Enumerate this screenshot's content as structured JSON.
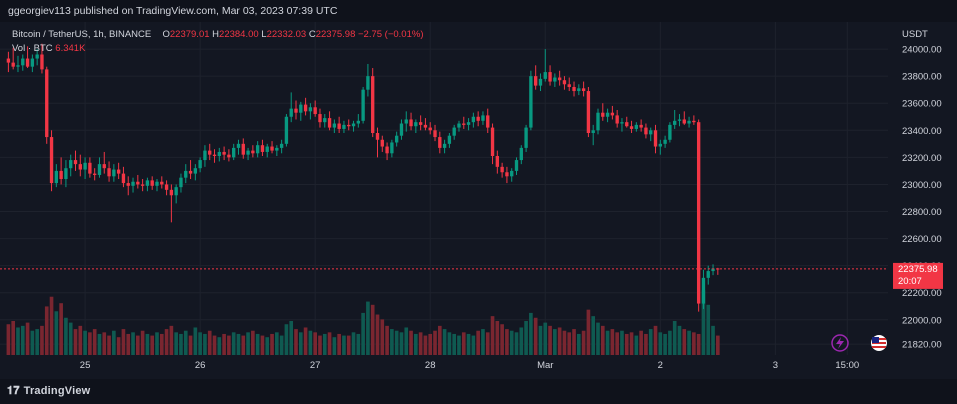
{
  "header": {
    "published": "ggeorgiev113 published on TradingView.com, Mar 03, 2023 07:39 UTC"
  },
  "legend": {
    "symbol": "Bitcoin / TetherUS, 1h, BINANCE",
    "o_label": "O",
    "o_value": "22379.01",
    "h_label": "H",
    "h_value": "22384.00",
    "l_label": "L",
    "l_value": "22332.03",
    "c_label": "C",
    "c_value": "22375.98",
    "change": "−2.75 (−0.01%)",
    "vol_label": "Vol · BTC",
    "vol_value": "6.341K"
  },
  "price_tag": {
    "value": "22375.98",
    "countdown": "20:07"
  },
  "footer": {
    "brand": "TradingView"
  },
  "colors": {
    "background": "#131722",
    "up": "#089981",
    "down": "#f23645",
    "grid": "#1e222d",
    "axis_text": "#d1d4dc"
  },
  "chart_data": {
    "type": "candlestick",
    "title": "Bitcoin / TetherUS, 1h, BINANCE",
    "currency_label": "USDT",
    "ylim": [
      21740,
      24200
    ],
    "y_ticks": [
      21820,
      22000,
      22200,
      22400,
      22600,
      22800,
      23000,
      23200,
      23400,
      23600,
      23800,
      24000
    ],
    "y_tick_labels": [
      "21820.00",
      "22000.00",
      "22200.00",
      "22400.00",
      "22600.00",
      "22800.00",
      "23000.00",
      "23200.00",
      "23400.00",
      "23600.00",
      "23800.00",
      "24000.00"
    ],
    "x_ticks": [
      {
        "label": "25",
        "index": 16
      },
      {
        "label": "26",
        "index": 40
      },
      {
        "label": "27",
        "index": 64
      },
      {
        "label": "28",
        "index": 88
      },
      {
        "label": "Mar",
        "index": 112
      },
      {
        "label": "2",
        "index": 136
      },
      {
        "label": "3",
        "index": 160
      },
      {
        "label": "15:00",
        "index": 175
      }
    ],
    "last_price": 22375.98,
    "candles": [
      [
        23930,
        23980,
        23830,
        23900
      ],
      [
        23900,
        24010,
        23850,
        23870
      ],
      [
        23870,
        23950,
        23830,
        23880
      ],
      [
        23880,
        23960,
        23840,
        23930
      ],
      [
        23930,
        24020,
        23860,
        23870
      ],
      [
        23870,
        23960,
        23830,
        23930
      ],
      [
        23930,
        24000,
        23880,
        23960
      ],
      [
        23960,
        24040,
        23820,
        23850
      ],
      [
        23850,
        23870,
        23300,
        23350
      ],
      [
        23350,
        23400,
        22950,
        23010
      ],
      [
        23010,
        23150,
        22980,
        23100
      ],
      [
        23100,
        23200,
        23000,
        23040
      ],
      [
        23040,
        23180,
        22980,
        23120
      ],
      [
        23120,
        23220,
        23060,
        23180
      ],
      [
        23180,
        23250,
        23100,
        23150
      ],
      [
        23150,
        23220,
        23060,
        23110
      ],
      [
        23110,
        23200,
        23040,
        23160
      ],
      [
        23160,
        23200,
        23050,
        23080
      ],
      [
        23080,
        23120,
        23030,
        23070
      ],
      [
        23070,
        23200,
        23050,
        23150
      ],
      [
        23150,
        23240,
        23080,
        23120
      ],
      [
        23120,
        23170,
        23020,
        23060
      ],
      [
        23060,
        23150,
        23020,
        23110
      ],
      [
        23110,
        23160,
        23040,
        23080
      ],
      [
        23080,
        23130,
        22980,
        23010
      ],
      [
        23010,
        23060,
        22920,
        22990
      ],
      [
        22990,
        23050,
        22940,
        23020
      ],
      [
        23020,
        23070,
        22970,
        23000
      ],
      [
        23000,
        23040,
        22950,
        22990
      ],
      [
        22990,
        23050,
        22950,
        23030
      ],
      [
        23030,
        23060,
        22960,
        22990
      ],
      [
        22990,
        23040,
        22950,
        23020
      ],
      [
        23020,
        23060,
        22970,
        23000
      ],
      [
        23000,
        23030,
        22920,
        22960
      ],
      [
        22960,
        23000,
        22720,
        22920
      ],
      [
        22920,
        23000,
        22860,
        22980
      ],
      [
        22980,
        23080,
        22940,
        23050
      ],
      [
        23050,
        23150,
        23010,
        23100
      ],
      [
        23100,
        23180,
        23040,
        23080
      ],
      [
        23080,
        23150,
        23030,
        23120
      ],
      [
        23120,
        23200,
        23090,
        23180
      ],
      [
        23180,
        23290,
        23130,
        23250
      ],
      [
        23250,
        23300,
        23180,
        23220
      ],
      [
        23220,
        23260,
        23160,
        23210
      ],
      [
        23210,
        23270,
        23170,
        23240
      ],
      [
        23240,
        23280,
        23180,
        23220
      ],
      [
        23220,
        23260,
        23170,
        23200
      ],
      [
        23200,
        23300,
        23180,
        23270
      ],
      [
        23270,
        23330,
        23220,
        23300
      ],
      [
        23300,
        23340,
        23190,
        23220
      ],
      [
        23220,
        23270,
        23180,
        23250
      ],
      [
        23250,
        23290,
        23200,
        23230
      ],
      [
        23230,
        23320,
        23200,
        23290
      ],
      [
        23290,
        23330,
        23210,
        23240
      ],
      [
        23240,
        23300,
        23200,
        23280
      ],
      [
        23280,
        23320,
        23230,
        23250
      ],
      [
        23250,
        23290,
        23210,
        23270
      ],
      [
        23270,
        23330,
        23230,
        23300
      ],
      [
        23300,
        23520,
        23280,
        23500
      ],
      [
        23500,
        23680,
        23460,
        23560
      ],
      [
        23560,
        23620,
        23480,
        23530
      ],
      [
        23530,
        23610,
        23470,
        23590
      ],
      [
        23590,
        23640,
        23510,
        23540
      ],
      [
        23540,
        23600,
        23480,
        23570
      ],
      [
        23570,
        23620,
        23500,
        23520
      ],
      [
        23520,
        23560,
        23420,
        23460
      ],
      [
        23460,
        23520,
        23420,
        23490
      ],
      [
        23490,
        23540,
        23400,
        23420
      ],
      [
        23420,
        23480,
        23380,
        23450
      ],
      [
        23450,
        23500,
        23380,
        23410
      ],
      [
        23410,
        23470,
        23380,
        23440
      ],
      [
        23440,
        23480,
        23400,
        23430
      ],
      [
        23430,
        23470,
        23390,
        23450
      ],
      [
        23450,
        23520,
        23420,
        23470
      ],
      [
        23470,
        23720,
        23450,
        23700
      ],
      [
        23700,
        23890,
        23650,
        23800
      ],
      [
        23800,
        23860,
        23350,
        23380
      ],
      [
        23380,
        23420,
        23200,
        23330
      ],
      [
        23330,
        23360,
        23240,
        23280
      ],
      [
        23280,
        23310,
        23180,
        23230
      ],
      [
        23230,
        23330,
        23200,
        23310
      ],
      [
        23310,
        23390,
        23280,
        23360
      ],
      [
        23360,
        23480,
        23330,
        23450
      ],
      [
        23450,
        23540,
        23390,
        23480
      ],
      [
        23480,
        23530,
        23400,
        23430
      ],
      [
        23430,
        23480,
        23380,
        23460
      ],
      [
        23460,
        23510,
        23400,
        23440
      ],
      [
        23440,
        23490,
        23400,
        23420
      ],
      [
        23420,
        23460,
        23370,
        23400
      ],
      [
        23400,
        23440,
        23320,
        23350
      ],
      [
        23350,
        23390,
        23230,
        23270
      ],
      [
        23270,
        23330,
        23230,
        23300
      ],
      [
        23300,
        23380,
        23270,
        23360
      ],
      [
        23360,
        23440,
        23330,
        23420
      ],
      [
        23420,
        23470,
        23390,
        23450
      ],
      [
        23450,
        23500,
        23410,
        23440
      ],
      [
        23440,
        23490,
        23400,
        23460
      ],
      [
        23460,
        23530,
        23420,
        23500
      ],
      [
        23500,
        23540,
        23430,
        23470
      ],
      [
        23470,
        23540,
        23440,
        23510
      ],
      [
        23510,
        23560,
        23380,
        23420
      ],
      [
        23420,
        23450,
        23150,
        23210
      ],
      [
        23210,
        23250,
        23080,
        23130
      ],
      [
        23130,
        23160,
        23050,
        23090
      ],
      [
        23090,
        23130,
        23010,
        23060
      ],
      [
        23060,
        23120,
        23020,
        23100
      ],
      [
        23100,
        23200,
        23070,
        23180
      ],
      [
        23180,
        23290,
        23150,
        23270
      ],
      [
        23270,
        23440,
        23240,
        23420
      ],
      [
        23420,
        23840,
        23400,
        23800
      ],
      [
        23800,
        23880,
        23700,
        23730
      ],
      [
        23730,
        23820,
        23690,
        23780
      ],
      [
        23780,
        24000,
        23760,
        23830
      ],
      [
        23830,
        23880,
        23730,
        23760
      ],
      [
        23760,
        23820,
        23720,
        23790
      ],
      [
        23790,
        23840,
        23730,
        23770
      ],
      [
        23770,
        23800,
        23700,
        23740
      ],
      [
        23740,
        23790,
        23690,
        23720
      ],
      [
        23720,
        23760,
        23650,
        23690
      ],
      [
        23690,
        23740,
        23660,
        23710
      ],
      [
        23710,
        23760,
        23650,
        23690
      ],
      [
        23690,
        23720,
        23350,
        23380
      ],
      [
        23380,
        23440,
        23290,
        23400
      ],
      [
        23400,
        23560,
        23370,
        23530
      ],
      [
        23530,
        23600,
        23470,
        23500
      ],
      [
        23500,
        23560,
        23460,
        23530
      ],
      [
        23530,
        23580,
        23480,
        23510
      ],
      [
        23510,
        23550,
        23420,
        23450
      ],
      [
        23450,
        23490,
        23390,
        23460
      ],
      [
        23460,
        23500,
        23420,
        23430
      ],
      [
        23430,
        23470,
        23380,
        23410
      ],
      [
        23410,
        23460,
        23390,
        23440
      ],
      [
        23440,
        23480,
        23390,
        23420
      ],
      [
        23420,
        23450,
        23340,
        23370
      ],
      [
        23370,
        23420,
        23320,
        23400
      ],
      [
        23400,
        23440,
        23230,
        23280
      ],
      [
        23280,
        23330,
        23220,
        23300
      ],
      [
        23300,
        23360,
        23270,
        23330
      ],
      [
        23330,
        23460,
        23310,
        23440
      ],
      [
        23440,
        23550,
        23410,
        23470
      ],
      [
        23470,
        23520,
        23430,
        23480
      ],
      [
        23480,
        23540,
        23440,
        23450
      ],
      [
        23450,
        23500,
        23420,
        23470
      ],
      [
        23470,
        23510,
        23440,
        23460
      ],
      [
        23460,
        23480,
        22060,
        22120
      ],
      [
        22120,
        22370,
        22080,
        22310
      ],
      [
        22310,
        22400,
        22260,
        22360
      ],
      [
        22360,
        22410,
        22330,
        22379
      ],
      [
        22379,
        22384,
        22332,
        22376
      ]
    ],
    "volumes": [
      1.9,
      2.1,
      1.7,
      1.8,
      2.0,
      1.5,
      1.6,
      1.8,
      3.0,
      3.6,
      2.7,
      3.2,
      2.3,
      2.0,
      1.6,
      1.8,
      1.5,
      1.4,
      1.6,
      1.3,
      1.4,
      1.2,
      1.5,
      1.1,
      1.6,
      1.3,
      1.4,
      1.2,
      1.5,
      1.3,
      1.2,
      1.4,
      1.3,
      1.6,
      1.8,
      1.4,
      1.3,
      1.5,
      1.2,
      1.7,
      1.4,
      1.3,
      1.5,
      1.2,
      1.1,
      1.3,
      1.2,
      1.4,
      1.3,
      1.2,
      1.4,
      1.5,
      1.3,
      1.2,
      1.1,
      1.3,
      1.4,
      1.2,
      1.9,
      2.1,
      1.6,
      1.4,
      1.7,
      1.5,
      1.4,
      1.2,
      1.3,
      1.4,
      1.1,
      1.3,
      1.2,
      1.2,
      1.4,
      1.3,
      2.6,
      3.3,
      3.1,
      2.5,
      2.2,
      1.8,
      1.6,
      1.5,
      1.4,
      1.7,
      1.5,
      1.3,
      1.4,
      1.2,
      1.3,
      1.5,
      1.8,
      1.6,
      1.4,
      1.3,
      1.2,
      1.4,
      1.3,
      1.2,
      1.5,
      1.6,
      1.4,
      2.4,
      2.1,
      1.9,
      1.6,
      1.5,
      1.4,
      1.7,
      2.1,
      2.6,
      2.3,
      1.8,
      2.0,
      1.8,
      1.6,
      1.7,
      1.5,
      1.4,
      1.6,
      1.3,
      1.5,
      2.8,
      2.4,
      2.0,
      1.8,
      1.5,
      1.6,
      1.4,
      1.5,
      1.3,
      1.4,
      1.2,
      1.5,
      1.3,
      1.6,
      1.8,
      1.4,
      1.3,
      1.5,
      2.1,
      1.8,
      1.6,
      1.5,
      1.4,
      1.3,
      4.0,
      3.1,
      1.8,
      1.2
    ]
  }
}
